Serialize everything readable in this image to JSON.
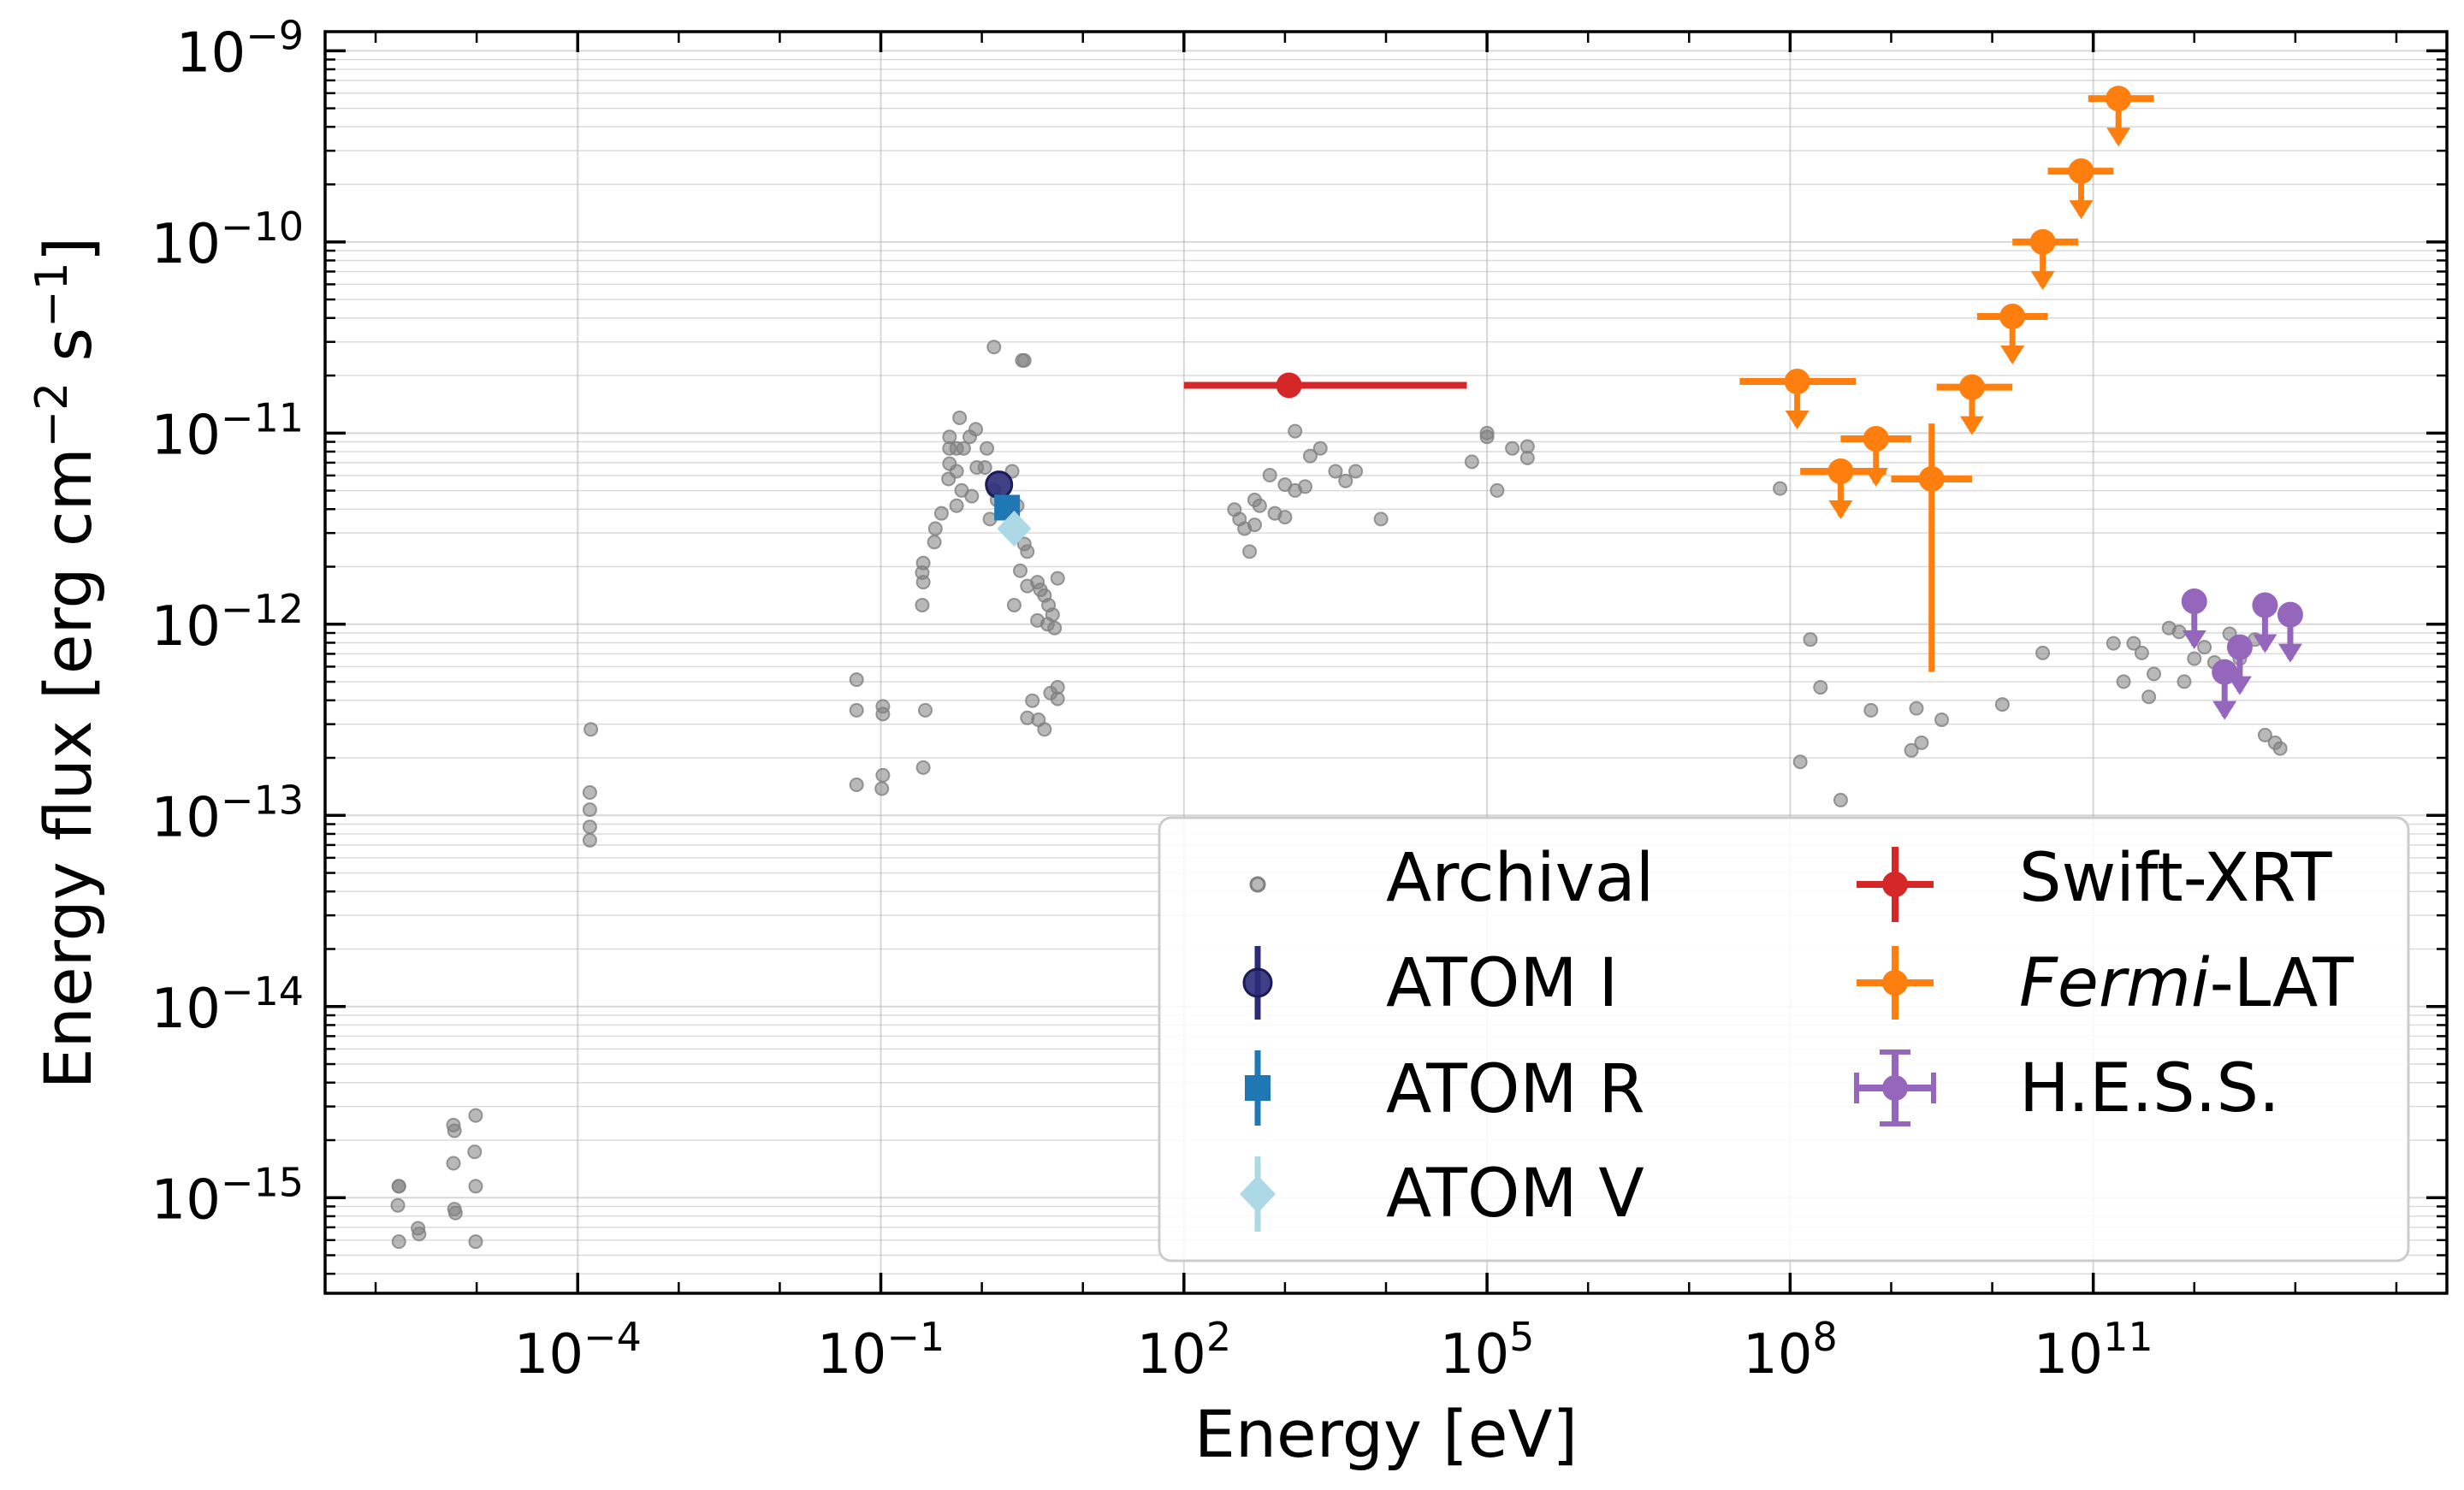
{
  "chart_data": {
    "type": "scatter",
    "xscale": "log",
    "yscale": "log",
    "xlabel": "Energy [eV]",
    "ylabel": "Energy flux [erg cm⁻² s⁻¹]",
    "xlim_log10": [
      -6.5,
      14.5
    ],
    "ylim_log10": [
      -15.5,
      -8.9
    ],
    "grid": true,
    "legend_position": "lower-right",
    "x_ticks": [
      {
        "exp": -4,
        "base": "10",
        "sup": "−4"
      },
      {
        "exp": -1,
        "base": "10",
        "sup": "−1"
      },
      {
        "exp": 2,
        "base": "10",
        "sup": "2"
      },
      {
        "exp": 5,
        "base": "10",
        "sup": "5"
      },
      {
        "exp": 8,
        "base": "10",
        "sup": "8"
      },
      {
        "exp": 11,
        "base": "10",
        "sup": "11"
      }
    ],
    "y_ticks": [
      {
        "exp": -15,
        "base": "10",
        "sup": "−15"
      },
      {
        "exp": -14,
        "base": "10",
        "sup": "−14"
      },
      {
        "exp": -13,
        "base": "10",
        "sup": "−13"
      },
      {
        "exp": -12,
        "base": "10",
        "sup": "−12"
      },
      {
        "exp": -11,
        "base": "10",
        "sup": "−11"
      },
      {
        "exp": -10,
        "base": "10",
        "sup": "−10"
      },
      {
        "exp": -9,
        "base": "10",
        "sup": "−9"
      }
    ],
    "series": [
      {
        "name": "Archival",
        "color": "#808080",
        "points_log10": [
          [
            -5.77,
            -14.94
          ],
          [
            -5.77,
            -14.94
          ],
          [
            -5.78,
            -15.04
          ],
          [
            -5.77,
            -15.23
          ],
          [
            -5.58,
            -15.16
          ],
          [
            -5.57,
            -15.19
          ],
          [
            -5.23,
            -14.62
          ],
          [
            -5.22,
            -14.65
          ],
          [
            -5.23,
            -14.82
          ],
          [
            -5.22,
            -15.06
          ],
          [
            -5.21,
            -15.08
          ],
          [
            -5.01,
            -14.57
          ],
          [
            -5.02,
            -14.76
          ],
          [
            -5.01,
            -14.94
          ],
          [
            -5.01,
            -15.23
          ],
          [
            -3.87,
            -12.55
          ],
          [
            -3.88,
            -12.88
          ],
          [
            -3.88,
            -12.97
          ],
          [
            -3.88,
            -13.06
          ],
          [
            -3.88,
            -13.13
          ],
          [
            -1.24,
            -12.29
          ],
          [
            -1.24,
            -12.45
          ],
          [
            -1.24,
            -12.84
          ],
          [
            -0.98,
            -12.43
          ],
          [
            -0.98,
            -12.47
          ],
          [
            -0.99,
            -12.86
          ],
          [
            -0.98,
            -12.79
          ],
          [
            -0.58,
            -12.75
          ],
          [
            -0.56,
            -12.45
          ],
          [
            -0.59,
            -11.9
          ],
          [
            -0.58,
            -11.78
          ],
          [
            -0.59,
            -11.73
          ],
          [
            -0.58,
            -11.68
          ],
          [
            -0.47,
            -11.57
          ],
          [
            -0.46,
            -11.5
          ],
          [
            -0.4,
            -11.42
          ],
          [
            -0.33,
            -11.24
          ],
          [
            -0.32,
            -11.16
          ],
          [
            -0.32,
            -11.08
          ],
          [
            -0.32,
            -11.02
          ],
          [
            -0.25,
            -11.08
          ],
          [
            -0.25,
            -11.2
          ],
          [
            -0.25,
            -11.38
          ],
          [
            -0.22,
            -10.92
          ],
          [
            -0.18,
            -11.08
          ],
          [
            -0.12,
            -11.02
          ],
          [
            -0.06,
            -10.98
          ],
          [
            -0.05,
            -11.18
          ],
          [
            -0.2,
            -11.3
          ],
          [
            -0.1,
            -11.33
          ],
          [
            0.05,
            -11.08
          ],
          [
            0.03,
            -11.18
          ],
          [
            0.12,
            -11.3
          ],
          [
            0.15,
            -11.35
          ],
          [
            0.08,
            -11.45
          ],
          [
            0.12,
            -10.55
          ],
          [
            0.3,
            -11.2
          ],
          [
            0.35,
            -11.38
          ],
          [
            0.42,
            -11.58
          ],
          [
            0.45,
            -11.62
          ],
          [
            0.38,
            -11.72
          ],
          [
            0.45,
            -11.8
          ],
          [
            0.32,
            -11.9
          ],
          [
            0.55,
            -11.78
          ],
          [
            0.58,
            -11.82
          ],
          [
            0.62,
            -11.85
          ],
          [
            0.66,
            -11.9
          ],
          [
            0.7,
            -11.95
          ],
          [
            0.75,
            -11.76
          ],
          [
            0.55,
            -11.98
          ],
          [
            0.65,
            -12.0
          ],
          [
            0.72,
            -12.02
          ],
          [
            0.5,
            -12.4
          ],
          [
            0.62,
            -12.55
          ],
          [
            0.56,
            -12.5
          ],
          [
            0.68,
            -12.36
          ],
          [
            0.75,
            -12.39
          ],
          [
            0.75,
            -12.33
          ],
          [
            0.45,
            -12.49
          ],
          [
            0.4,
            -10.62
          ],
          [
            0.42,
            -10.62
          ],
          [
            2.5,
            -11.4
          ],
          [
            2.7,
            -11.35
          ],
          [
            2.85,
            -11.22
          ],
          [
            3.0,
            -11.27
          ],
          [
            3.1,
            -11.3
          ],
          [
            2.55,
            -11.45
          ],
          [
            2.6,
            -11.5
          ],
          [
            2.7,
            -11.48
          ],
          [
            2.75,
            -11.38
          ],
          [
            2.9,
            -11.42
          ],
          [
            3.2,
            -11.28
          ],
          [
            3.35,
            -11.08
          ],
          [
            3.5,
            -11.2
          ],
          [
            3.6,
            -11.25
          ],
          [
            3.7,
            -11.2
          ],
          [
            3.95,
            -11.45
          ],
          [
            2.65,
            -11.62
          ],
          [
            3.1,
            -10.99
          ],
          [
            3.25,
            -11.12
          ],
          [
            3.0,
            -11.44
          ],
          [
            4.85,
            -11.15
          ],
          [
            5.0,
            -11.02
          ],
          [
            5.0,
            -11.0
          ],
          [
            5.1,
            -11.3
          ],
          [
            5.25,
            -11.08
          ],
          [
            5.4,
            -11.07
          ],
          [
            5.4,
            -11.13
          ],
          [
            7.9,
            -11.29
          ],
          [
            8.1,
            -12.72
          ],
          [
            8.2,
            -12.08
          ],
          [
            8.3,
            -12.33
          ],
          [
            8.5,
            -12.92
          ],
          [
            8.8,
            -12.45
          ],
          [
            9.2,
            -12.66
          ],
          [
            9.25,
            -12.44
          ],
          [
            9.3,
            -12.62
          ],
          [
            9.5,
            -12.5
          ],
          [
            10.1,
            -12.42
          ],
          [
            10.5,
            -12.15
          ],
          [
            11.2,
            -12.1
          ],
          [
            11.3,
            -12.3
          ],
          [
            11.4,
            -12.1
          ],
          [
            11.48,
            -12.15
          ],
          [
            11.55,
            -12.38
          ],
          [
            11.6,
            -12.26
          ],
          [
            11.75,
            -12.02
          ],
          [
            11.85,
            -12.04
          ],
          [
            11.9,
            -12.3
          ],
          [
            12.0,
            -12.18
          ],
          [
            12.1,
            -12.12
          ],
          [
            12.2,
            -12.2
          ],
          [
            12.35,
            -12.05
          ],
          [
            12.45,
            -12.18
          ],
          [
            12.6,
            -12.08
          ],
          [
            12.7,
            -12.58
          ],
          [
            12.8,
            -12.62
          ],
          [
            12.85,
            -12.65
          ]
        ]
      },
      {
        "name": "ATOM I",
        "color": "#2b2b7a",
        "points_log10": [
          [
            0.17,
            -11.27
          ]
        ]
      },
      {
        "name": "ATOM R",
        "color": "#1f77b4",
        "points_log10": [
          [
            0.25,
            -11.39
          ]
        ]
      },
      {
        "name": "ATOM V",
        "color": "#add8e6",
        "points_log10": [
          [
            0.32,
            -11.5
          ]
        ]
      },
      {
        "name": "Swift-XRT",
        "color": "#d62728",
        "points_log10": [
          [
            3.04,
            -10.75
          ]
        ],
        "x_errors_log10": [
          [
            2.0,
            4.8
          ]
        ]
      },
      {
        "name": "Fermi-LAT",
        "color": "#ff7f0e",
        "points_log10": [
          [
            8.07,
            -10.73
          ],
          [
            8.5,
            -11.2
          ],
          [
            8.85,
            -11.03
          ],
          [
            9.4,
            -11.24
          ],
          [
            9.8,
            -10.76
          ],
          [
            10.2,
            -10.39
          ],
          [
            10.5,
            -10.0
          ],
          [
            10.88,
            -9.63
          ],
          [
            11.25,
            -9.25
          ]
        ],
        "x_errors_log10": [
          [
            7.5,
            8.65
          ],
          [
            8.1,
            8.95
          ],
          [
            8.5,
            9.2
          ],
          [
            9.0,
            9.8
          ],
          [
            9.45,
            10.2
          ],
          [
            9.85,
            10.55
          ],
          [
            10.2,
            10.85
          ],
          [
            10.55,
            11.2
          ],
          [
            10.95,
            11.6
          ]
        ],
        "upper_limit": [
          true,
          true,
          true,
          false,
          true,
          true,
          true,
          true,
          true
        ],
        "y_error_log10": [
          null,
          null,
          null,
          [
            -12.25,
            -10.95
          ],
          null,
          null,
          null,
          null,
          null
        ]
      },
      {
        "name": "H.E.S.S.",
        "color": "#9467bd",
        "points_log10": [
          [
            12.0,
            -11.88
          ],
          [
            12.3,
            -12.25
          ],
          [
            12.45,
            -12.12
          ],
          [
            12.7,
            -11.9
          ],
          [
            12.95,
            -11.95
          ]
        ],
        "upper_limit": [
          true,
          true,
          true,
          true,
          true
        ]
      }
    ]
  },
  "legend": {
    "col1": [
      {
        "label": "Archival",
        "name": "legend-archival"
      },
      {
        "label": "ATOM I",
        "name": "legend-atom-i"
      },
      {
        "label": "ATOM R",
        "name": "legend-atom-r"
      },
      {
        "label": "ATOM V",
        "name": "legend-atom-v"
      }
    ],
    "col2": [
      {
        "label": "Swift-XRT",
        "name": "legend-swift-xrt"
      },
      {
        "label_italic": "Fermi",
        "label_rest": "-LAT",
        "name": "legend-fermi-lat"
      },
      {
        "label": "H.E.S.S.",
        "name": "legend-hess"
      }
    ]
  },
  "ylabel_parts": {
    "main": "Energy flux [erg cm",
    "sup1": "−2",
    "mid": " s",
    "sup2": "−1",
    "end": "]"
  }
}
